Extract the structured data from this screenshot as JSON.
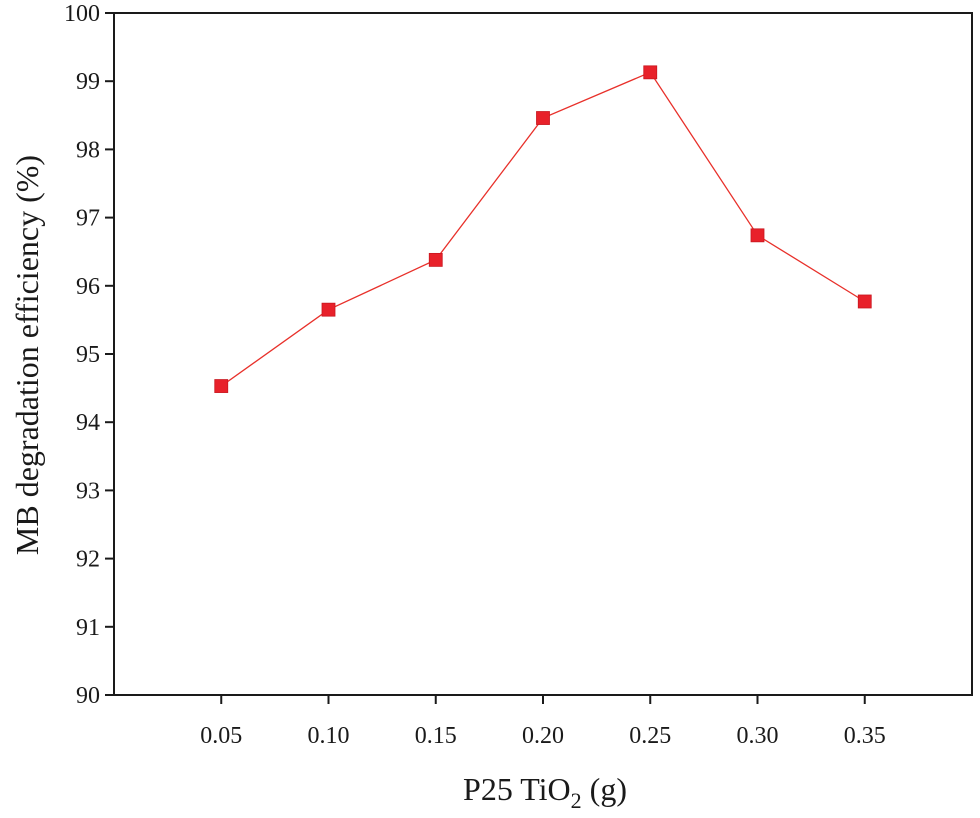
{
  "chart_data": {
    "type": "line",
    "title": "",
    "xlabel_main": "P25 TiO",
    "xlabel_sub": "2",
    "xlabel_unit": " (g)",
    "ylabel": "MB degradation efficiency  (%)",
    "x": [
      0.05,
      0.1,
      0.15,
      0.2,
      0.25,
      0.3,
      0.35
    ],
    "x_tick_labels": [
      "0.05",
      "0.10",
      "0.15",
      "0.20",
      "0.25",
      "0.30",
      "0.35"
    ],
    "xlim": [
      0.0,
      0.4
    ],
    "ylim": [
      90,
      100
    ],
    "y_ticks": [
      90,
      91,
      92,
      93,
      94,
      95,
      96,
      97,
      98,
      99,
      100
    ],
    "y_tick_labels": [
      "90",
      "91",
      "92",
      "93",
      "94",
      "95",
      "96",
      "97",
      "98",
      "99",
      "100"
    ],
    "grid": false,
    "series": [
      {
        "name": "MB degradation efficiency",
        "marker": "square",
        "color": "#e8212a",
        "values": [
          94.53,
          95.65,
          96.38,
          98.46,
          99.13,
          96.74,
          95.77
        ]
      }
    ]
  }
}
